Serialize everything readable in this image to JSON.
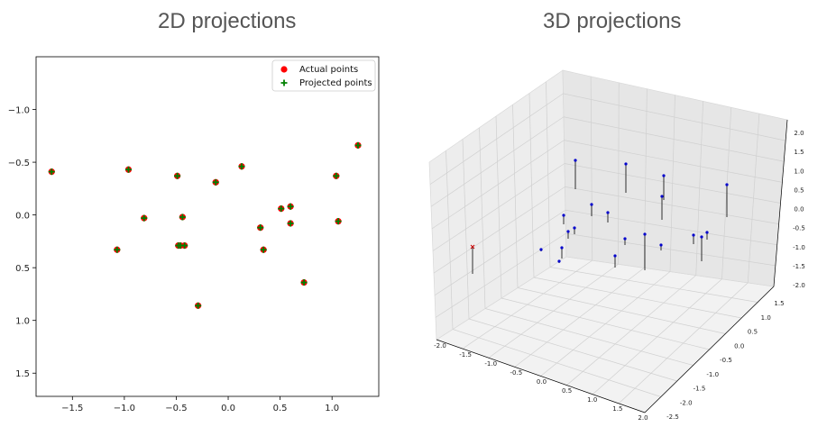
{
  "titles": {
    "left": "2D projections",
    "right": "3D projections"
  },
  "chart_data": [
    {
      "type": "scatter",
      "title": "2D projections",
      "xlim": [
        -1.85,
        1.45
      ],
      "ylim": [
        1.72,
        -1.5
      ],
      "y_inverted": true,
      "xticks": [
        -1.5,
        -1.0,
        -0.5,
        0.0,
        0.5,
        1.0
      ],
      "yticks": [
        -1.0,
        -0.5,
        0.0,
        0.5,
        1.0,
        1.5
      ],
      "xtick_labels": [
        "−1.5",
        "−1.0",
        "−0.5",
        "0.0",
        "0.5",
        "1.0"
      ],
      "ytick_labels": [
        "−1.0",
        "−0.5",
        "0.0",
        "0.5",
        "1.0",
        "1.5"
      ],
      "grid": false,
      "legend_position": "top-right",
      "series": [
        {
          "name": "Actual points",
          "marker": "circle",
          "color": "#ff0000",
          "points": [
            [
              -1.7,
              -0.41
            ],
            [
              -1.07,
              0.33
            ],
            [
              -0.96,
              -0.43
            ],
            [
              -0.81,
              0.03
            ],
            [
              -0.49,
              -0.37
            ],
            [
              -0.48,
              0.29
            ],
            [
              -0.46,
              0.29
            ],
            [
              -0.44,
              0.02
            ],
            [
              -0.42,
              0.29
            ],
            [
              -0.29,
              0.86
            ],
            [
              -0.12,
              -0.31
            ],
            [
              0.13,
              -0.46
            ],
            [
              0.31,
              0.12
            ],
            [
              0.34,
              0.33
            ],
            [
              0.51,
              -0.06
            ],
            [
              0.6,
              -0.08
            ],
            [
              0.6,
              0.08
            ],
            [
              0.73,
              0.64
            ],
            [
              1.04,
              -0.37
            ],
            [
              1.06,
              0.06
            ],
            [
              1.25,
              -0.66
            ]
          ]
        },
        {
          "name": "Projected points",
          "marker": "plus",
          "color": "#008000",
          "points": [
            [
              -1.7,
              -0.41
            ],
            [
              -1.07,
              0.33
            ],
            [
              -0.96,
              -0.43
            ],
            [
              -0.81,
              0.03
            ],
            [
              -0.49,
              -0.37
            ],
            [
              -0.48,
              0.29
            ],
            [
              -0.46,
              0.29
            ],
            [
              -0.44,
              0.02
            ],
            [
              -0.42,
              0.29
            ],
            [
              -0.29,
              0.86
            ],
            [
              -0.12,
              -0.31
            ],
            [
              0.13,
              -0.46
            ],
            [
              0.31,
              0.12
            ],
            [
              0.34,
              0.33
            ],
            [
              0.51,
              -0.06
            ],
            [
              0.6,
              -0.08
            ],
            [
              0.6,
              0.08
            ],
            [
              0.73,
              0.64
            ],
            [
              1.04,
              -0.37
            ],
            [
              1.06,
              0.06
            ],
            [
              1.25,
              -0.66
            ]
          ]
        }
      ]
    },
    {
      "type": "scatter",
      "title": "3D projections",
      "projection": "3d",
      "xlim": [
        -2.0,
        2.0
      ],
      "ylim": [
        -2.5,
        1.5
      ],
      "zlim": [
        -2.0,
        2.0
      ],
      "xticks": [
        "-2.0",
        "-1.5",
        "-1.0",
        "-0.5",
        "0.0",
        "0.5",
        "1.0",
        "1.5",
        "2.0"
      ],
      "yticks": [
        "-2.5",
        "-2.0",
        "-1.5",
        "-1.0",
        "-0.5",
        "0.0",
        "0.5",
        "1.0",
        "1.5"
      ],
      "zticks": [
        "-2.0",
        "-1.5",
        "-1.0",
        "-0.5",
        "0.0",
        "0.5",
        "1.0",
        "1.5",
        "2.0"
      ],
      "grid": true,
      "marker_color": "#0000cc",
      "outlier_color": "#cc0000",
      "stem_color": "#000000"
    }
  ]
}
